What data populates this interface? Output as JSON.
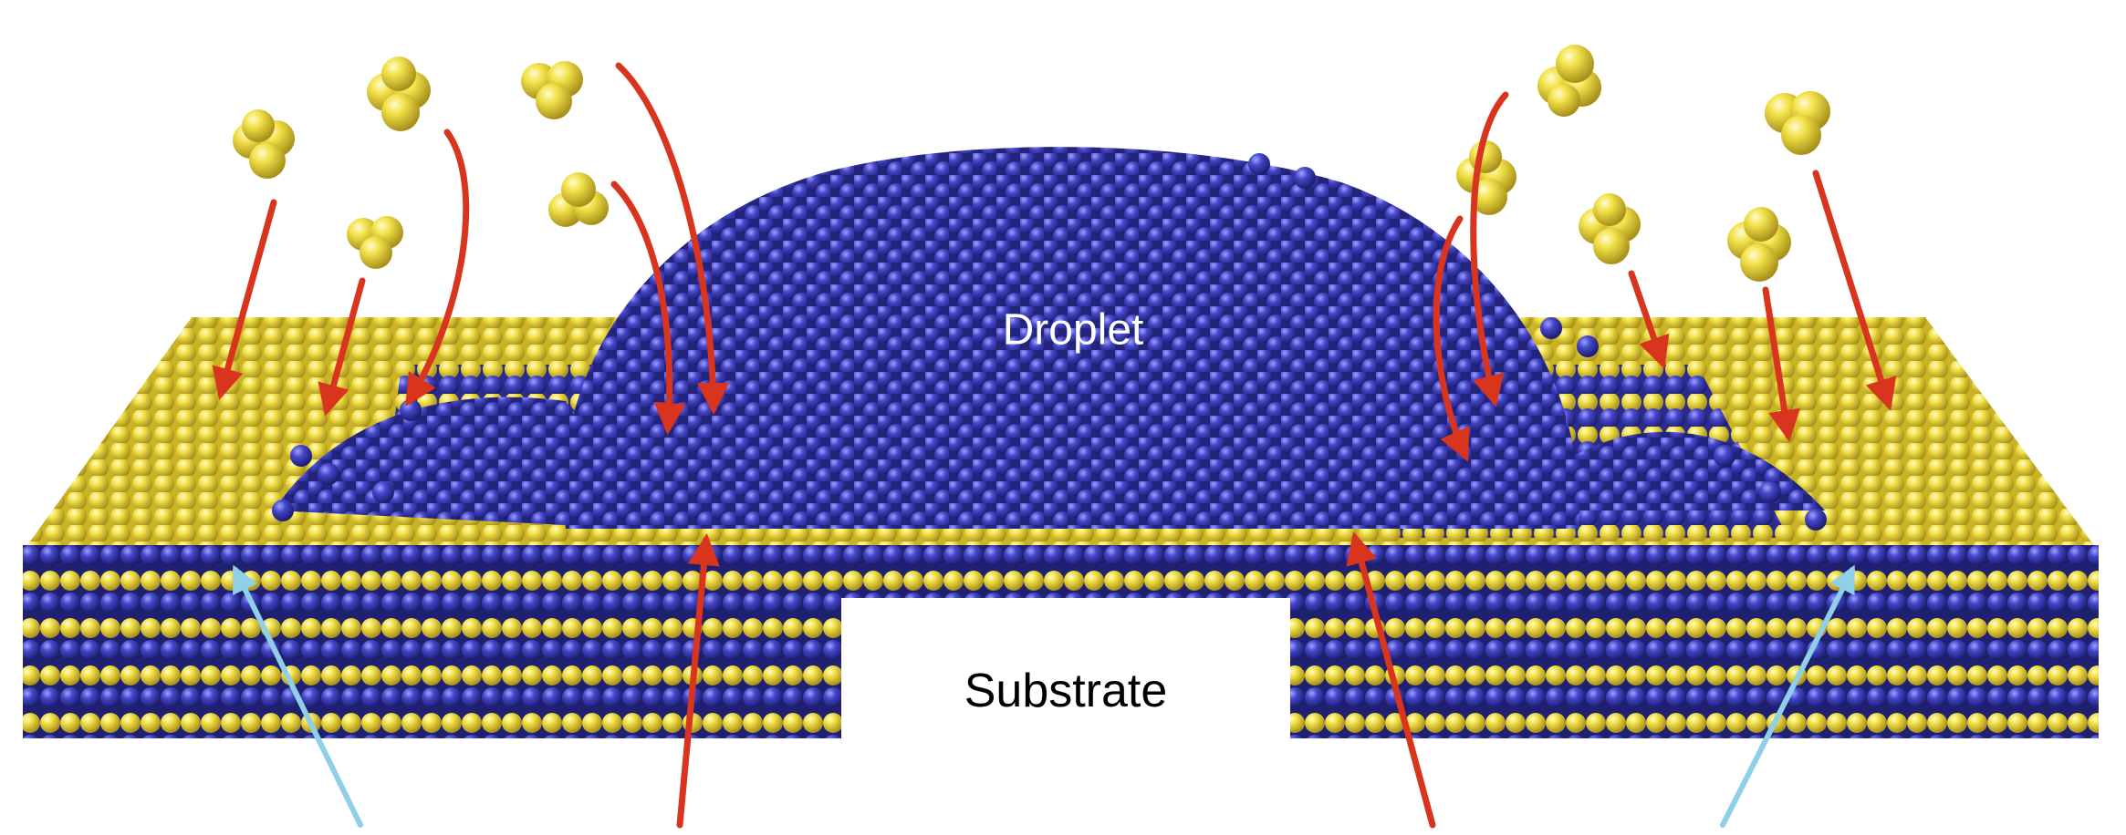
{
  "labels": {
    "droplet": "Droplet",
    "substrate": "Substrate"
  },
  "colors": {
    "substrate_top": "#e9d83a",
    "substrate_shadow": "#b9a315",
    "substrate_alt": "#3d3fae",
    "droplet_atom": "#3a3cb4",
    "droplet_highlight": "#8a8cff",
    "incoming_cluster": "#f2e23f",
    "flux_arrow": "#d9341e",
    "interface_arrow": "#8fcfe8",
    "background": "#ffffff"
  },
  "icons": {
    "incoming_cluster": "yellow-atom-cluster-icon",
    "deposition_arrow": "red-arrow-icon",
    "interface_arrow": "light-blue-arrow-icon"
  }
}
